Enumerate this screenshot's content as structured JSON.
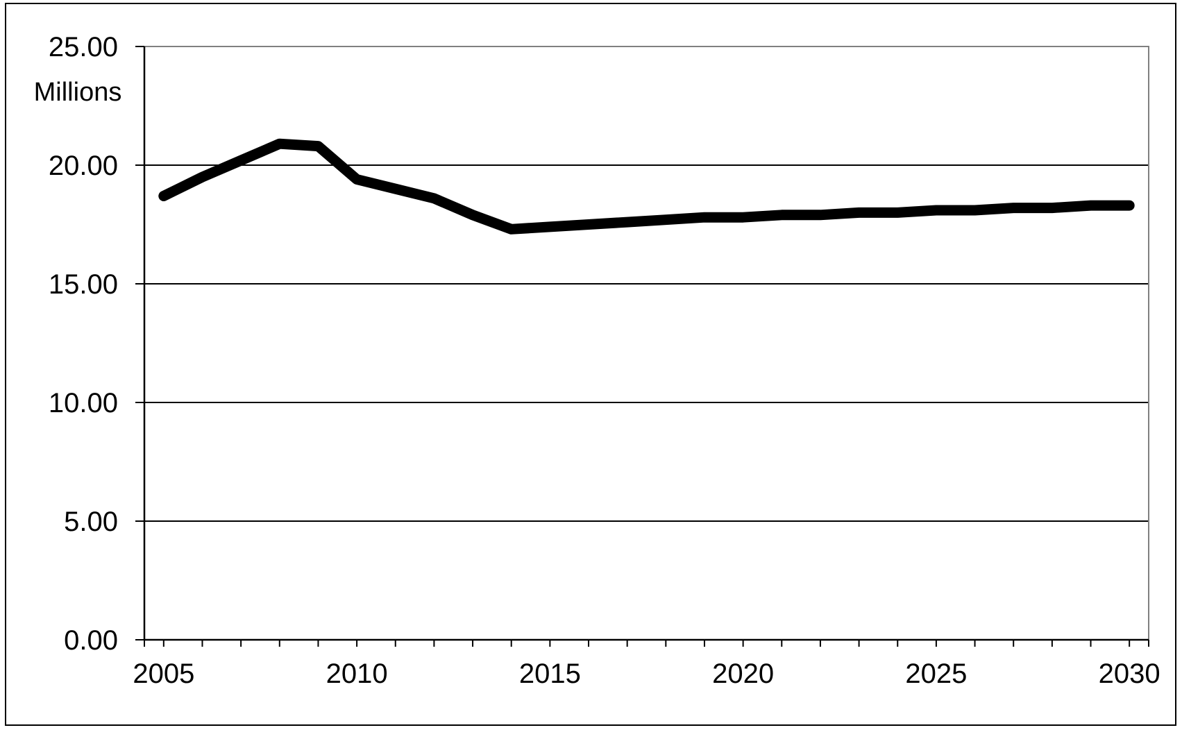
{
  "chart_data": {
    "type": "line",
    "title": "",
    "xlabel": "",
    "ylabel": "",
    "y_unit_label": "Millions",
    "xlim": [
      2004.5,
      2030.5
    ],
    "ylim": [
      0,
      25
    ],
    "y_ticks": [
      0,
      5,
      10,
      15,
      20,
      25
    ],
    "y_tick_labels": [
      "0.00",
      "5.00",
      "10.00",
      "15.00",
      "20.00",
      "25.00"
    ],
    "x_ticks": [
      2005,
      2010,
      2015,
      2020,
      2025,
      2030
    ],
    "x_tick_labels": [
      "2005",
      "2010",
      "2015",
      "2020",
      "2025",
      "2030"
    ],
    "grid": "horizontal",
    "legend": "none",
    "series": [
      {
        "color": "#000000",
        "x": [
          2005,
          2006,
          2007,
          2008,
          2009,
          2010,
          2011,
          2012,
          2013,
          2014,
          2015,
          2016,
          2017,
          2018,
          2019,
          2020,
          2021,
          2022,
          2023,
          2024,
          2025,
          2026,
          2027,
          2028,
          2029,
          2030
        ],
        "values": [
          18.7,
          19.5,
          20.2,
          20.9,
          20.8,
          19.4,
          19.0,
          18.6,
          17.9,
          17.3,
          17.4,
          17.5,
          17.6,
          17.7,
          17.8,
          17.8,
          17.9,
          17.9,
          18.0,
          18.0,
          18.1,
          18.1,
          18.2,
          18.2,
          18.3,
          18.3
        ]
      }
    ]
  }
}
